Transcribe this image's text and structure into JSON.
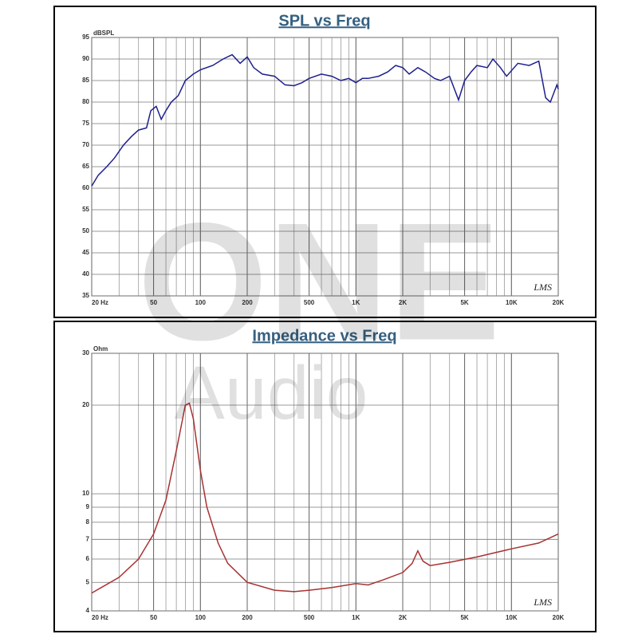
{
  "watermark": {
    "brand": "ONE",
    "sub": "Audio"
  },
  "chart_data": [
    {
      "type": "line",
      "title": "SPL vs Freq",
      "ylabel": "dBSPL",
      "annotation": "LMS",
      "xscale": "log",
      "yscale": "linear",
      "grid": true,
      "color": "#1f1f8f",
      "xlim": [
        20,
        20000
      ],
      "ylim": [
        35,
        95
      ],
      "xticks": [
        {
          "value": 20,
          "label": "20 Hz"
        },
        50,
        100,
        200,
        500,
        {
          "value": 1000,
          "label": "1K"
        },
        {
          "value": 2000,
          "label": "2K"
        },
        {
          "value": 5000,
          "label": "5K"
        },
        {
          "value": 10000,
          "label": "10K"
        },
        {
          "value": 20000,
          "label": "20K"
        }
      ],
      "yticks": [
        35,
        40,
        45,
        50,
        55,
        60,
        65,
        70,
        75,
        80,
        85,
        90,
        95
      ],
      "x": [
        20,
        22,
        25,
        28,
        32,
        36,
        40,
        45,
        48,
        52,
        56,
        60,
        65,
        72,
        80,
        90,
        100,
        120,
        140,
        160,
        180,
        200,
        220,
        250,
        300,
        350,
        400,
        450,
        500,
        600,
        700,
        800,
        900,
        1000,
        1100,
        1200,
        1400,
        1600,
        1800,
        2000,
        2200,
        2500,
        2800,
        3200,
        3500,
        4000,
        4570,
        5000,
        5500,
        6000,
        7000,
        7600,
        8500,
        9300,
        11000,
        13000,
        15000,
        16600,
        17800,
        19600,
        20000
      ],
      "values": [
        60.5,
        63,
        65,
        67,
        70,
        72,
        73.5,
        74,
        78,
        79,
        76,
        78,
        80,
        81.5,
        85,
        86.5,
        87.5,
        88.5,
        90,
        91,
        89,
        90.5,
        88,
        86.5,
        86,
        84,
        83.8,
        84.5,
        85.5,
        86.5,
        86,
        85,
        85.5,
        84.5,
        85.5,
        85.5,
        86,
        87,
        88.5,
        88,
        86.5,
        88,
        87,
        85.5,
        85,
        86,
        80.5,
        85,
        87,
        88.5,
        88,
        90,
        88,
        86,
        89,
        88.5,
        89.5,
        81,
        80,
        84,
        83
      ]
    },
    {
      "type": "line",
      "title": "Impedance vs Freq",
      "ylabel": "Ohm",
      "annotation": "LMS",
      "xscale": "log",
      "yscale": "log",
      "grid": true,
      "color": "#a83232",
      "xlim": [
        20,
        20000
      ],
      "ylim": [
        4,
        30
      ],
      "xticks": [
        {
          "value": 20,
          "label": "20 Hz"
        },
        50,
        100,
        200,
        500,
        {
          "value": 1000,
          "label": "1K"
        },
        {
          "value": 2000,
          "label": "2K"
        },
        {
          "value": 5000,
          "label": "5K"
        },
        {
          "value": 10000,
          "label": "10K"
        },
        {
          "value": 20000,
          "label": "20K"
        }
      ],
      "yticks": [
        4,
        5,
        6,
        7,
        8,
        9,
        10,
        20,
        30
      ],
      "x": [
        20,
        30,
        40,
        50,
        60,
        70,
        80,
        85,
        90,
        100,
        110,
        130,
        150,
        200,
        300,
        400,
        500,
        700,
        1000,
        1200,
        1500,
        2000,
        2300,
        2500,
        2700,
        3000,
        4000,
        6000,
        10000,
        15000,
        20000
      ],
      "values": [
        4.6,
        5.2,
        6,
        7.3,
        9.5,
        14,
        20,
        20.3,
        18,
        12,
        9,
        6.8,
        5.8,
        5,
        4.7,
        4.65,
        4.7,
        4.8,
        4.95,
        4.9,
        5.1,
        5.4,
        5.8,
        6.4,
        5.9,
        5.7,
        5.85,
        6.1,
        6.5,
        6.8,
        7.3
      ]
    }
  ]
}
